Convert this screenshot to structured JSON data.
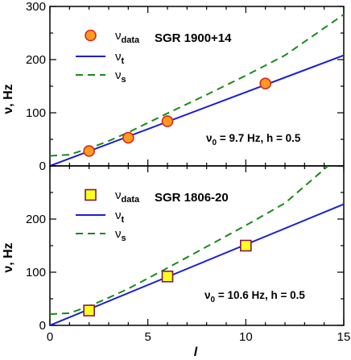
{
  "chart_data": [
    {
      "type": "line",
      "title": "SGR 1900+14",
      "annotation": "ν0 = 9.7 Hz, h = 0.5",
      "xlabel": "l",
      "ylabel": "ν, Hz",
      "xlim": [
        0,
        15
      ],
      "ylim": [
        0,
        300
      ],
      "xticks": [
        0,
        5,
        10,
        15
      ],
      "yticks": [
        0,
        100,
        200,
        300
      ],
      "ytick_labels": [
        "0",
        "100",
        "200",
        "300"
      ],
      "legend_position": "top-left",
      "marker_style": "circle",
      "marker_fill": "#ff9a1f",
      "marker_edge": "#d9261c",
      "colors": {
        "nu_t": "#1f1fd0",
        "nu_s": "#1a8a1a"
      },
      "series": [
        {
          "name": "νdata",
          "x": [
            2,
            4,
            6,
            11
          ],
          "y": [
            28,
            53,
            84,
            155
          ]
        },
        {
          "name": "νt",
          "x": [
            0,
            15
          ],
          "y": [
            0,
            208
          ]
        },
        {
          "name": "νs",
          "x": [
            0,
            1,
            2,
            3,
            4,
            6,
            8,
            10,
            12,
            15
          ],
          "y": [
            19,
            21,
            33,
            47,
            63,
            99,
            134,
            170,
            208,
            285
          ]
        }
      ]
    },
    {
      "type": "line",
      "title": "SGR 1806-20",
      "annotation": "ν0 = 10.6 Hz, h = 0.5",
      "xlabel": "l",
      "ylabel": "ν, Hz",
      "xlim": [
        0,
        15
      ],
      "ylim": [
        0,
        300
      ],
      "xticks": [
        0,
        5,
        10,
        15
      ],
      "xtick_labels": [
        "0",
        "5",
        "10",
        "15"
      ],
      "yticks": [
        0,
        100,
        200
      ],
      "ytick_labels": [
        "0",
        "100",
        "200"
      ],
      "legend_position": "top-left",
      "marker_style": "square",
      "marker_fill": "#ffff20",
      "marker_edge": "#7a1a4a",
      "colors": {
        "nu_t": "#1f1fd0",
        "nu_s": "#1a8a1a"
      },
      "series": [
        {
          "name": "νdata",
          "x": [
            2,
            6,
            10
          ],
          "y": [
            28,
            92,
            150
          ]
        },
        {
          "name": "νt",
          "x": [
            0,
            15
          ],
          "y": [
            0,
            228
          ]
        },
        {
          "name": "νs",
          "x": [
            0,
            1,
            2,
            3,
            4,
            6,
            8,
            10,
            12,
            14.2
          ],
          "y": [
            21,
            23,
            36,
            52,
            69,
            108,
            148,
            188,
            230,
            300
          ]
        }
      ]
    }
  ]
}
